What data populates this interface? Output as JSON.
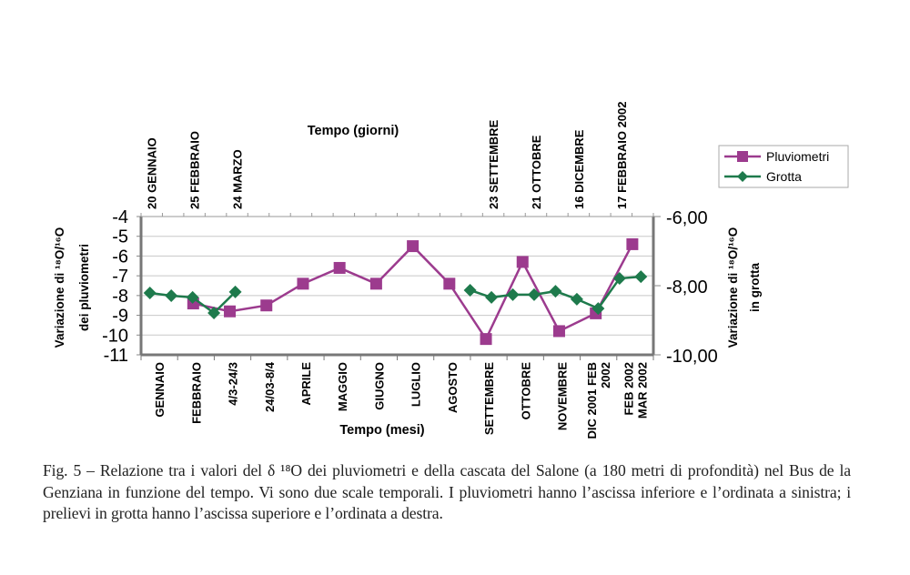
{
  "chart_data": {
    "type": "line",
    "top_axis_title": "Tempo (giorni)",
    "bottom_axis_title": "Tempo (mesi)",
    "ylabel_left": [
      "Variazione di ¹⁸O/¹⁶O",
      "dei pluviometri"
    ],
    "ylabel_right": [
      "Variazione di ¹⁸O/¹⁶O",
      "in grotta"
    ],
    "ylim_left": [
      -11,
      -4
    ],
    "yticks_left": [
      "-4",
      "-5",
      "-6",
      "-7",
      "-8",
      "-9",
      "-10",
      "-11"
    ],
    "ylim_right": [
      -10,
      -6
    ],
    "yticks_right": [
      "-6,00",
      "-8,00",
      "-10,00"
    ],
    "grid": true,
    "legend_position": "top-right",
    "categories": [
      "GENNAIO",
      "FEBBRAIO",
      "4/3-24/3",
      "24/03-8/4",
      "APRILE",
      "MAGGIO",
      "GIUGNO",
      "LUGLIO",
      "AGOSTO",
      "SETTEMBRE",
      "OTTOBRE",
      "NOVEMBRE",
      "DIC 2001 FEB|2002",
      "FEB 2002|MAR 2002"
    ],
    "top_slots": 24,
    "top_labels": [
      {
        "slot": 0,
        "label": "20 GENNAIO"
      },
      {
        "slot": 2,
        "label": "25 FEBBRAIO"
      },
      {
        "slot": 4,
        "label": "24 MARZO"
      },
      {
        "slot": 16,
        "label": "23 SETTEMBRE"
      },
      {
        "slot": 18,
        "label": "21 OTTOBRE"
      },
      {
        "slot": 20,
        "label": "16 DICEMBRE"
      },
      {
        "slot": 22,
        "label": "17 FEBBRAIO 2002"
      }
    ],
    "series": [
      {
        "name": "Pluviometri",
        "axis": "left",
        "x_axis": "bottom",
        "color": "#9c3b8e",
        "marker": "square",
        "values": [
          null,
          -8.4,
          -8.8,
          -8.5,
          -7.4,
          -6.6,
          -7.4,
          -5.5,
          -7.4,
          -10.2,
          -6.3,
          -9.8,
          -8.9,
          -5.4
        ]
      },
      {
        "name": "Grotta",
        "axis": "right",
        "x_axis": "top",
        "color": "#1e7a4c",
        "marker": "diamond",
        "slots": [
          0,
          1,
          2,
          3,
          4,
          15,
          16,
          17,
          18,
          19,
          20,
          21,
          22,
          23
        ],
        "values": [
          -8.21,
          -8.29,
          -8.34,
          -8.79,
          -8.18,
          -8.13,
          -8.34,
          -8.26,
          -8.26,
          -8.16,
          -8.39,
          -8.66,
          -7.79,
          -7.74
        ],
        "segments": [
          [
            0,
            4
          ],
          [
            5,
            13
          ]
        ]
      }
    ]
  },
  "caption": "Fig. 5 – Relazione tra i valori del δ ¹⁸O dei pluviometri e della cascata del Salone (a 180 metri di profondità) nel Bus de la Genziana in funzione del tempo. Vi sono due scale temporali. I pluviometri hanno l’ascissa inferiore e l’ordinata a sinistra; i prelievi in grotta hanno l’ascissa superiore e l’ordinata a destra."
}
